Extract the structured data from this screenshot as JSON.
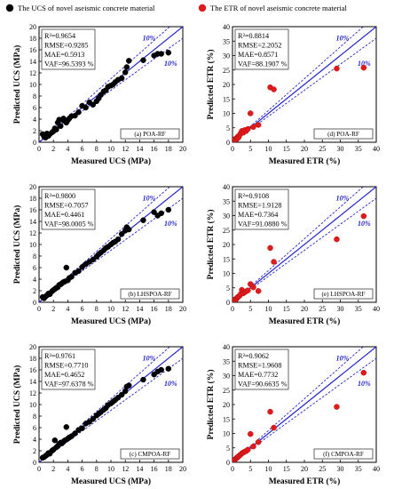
{
  "legend": {
    "left": "The UCS of novel aseismic concrete material",
    "right": "The ETR of novel aseismic concrete material",
    "left_color": "#000000",
    "right_color": "#e21a1a"
  },
  "colors": {
    "fit_line": "#2424c8",
    "band_line": "#2424c8"
  },
  "chart_data": [
    {
      "type": "scatter",
      "id": "a",
      "panel_label": "(a)   POA-RF",
      "xlabel": "",
      "ylabel": "Predicted UCS (MPa)",
      "xlim": [
        0,
        20
      ],
      "ylim": [
        0,
        20
      ],
      "xticks": [
        0,
        2,
        4,
        6,
        8,
        10,
        12,
        14,
        16,
        18,
        20
      ],
      "yticks": [
        0,
        2,
        4,
        6,
        8,
        10,
        12,
        14,
        16,
        18,
        20
      ],
      "stats": [
        "R²=0.9654",
        "RMSE=0.9285",
        "MAE=0.5913",
        "VAF=96.5393 %"
      ],
      "band_labels": [
        "10%",
        "10%"
      ],
      "point_color": "#000000",
      "x": [
        0.5,
        0.7,
        0.9,
        1.1,
        1.3,
        1.5,
        1.8,
        2.0,
        2.2,
        2.4,
        2.6,
        2.8,
        3.0,
        3.2,
        3.4,
        3.6,
        3.8,
        4.0,
        4.2,
        4.5,
        5.0,
        5.5,
        6.0,
        6.5,
        7.0,
        7.5,
        8.0,
        8.3,
        8.6,
        9.0,
        9.3,
        9.6,
        10.0,
        10.3,
        10.6,
        11.0,
        11.5,
        12.0,
        12.2,
        12.5,
        14.5,
        16.0,
        16.5,
        17.0,
        18.0
      ],
      "y": [
        1.4,
        1.0,
        0.8,
        1.5,
        1.1,
        1.4,
        1.7,
        1.9,
        2.4,
        2.2,
        3.4,
        3.9,
        2.8,
        3.9,
        4.1,
        3.7,
        3.4,
        3.8,
        4.1,
        4.5,
        4.6,
        5.2,
        6.3,
        6.0,
        6.9,
        6.5,
        7.1,
        7.6,
        8.2,
        8.8,
        9.0,
        9.6,
        9.8,
        10.0,
        10.4,
        10.8,
        11.1,
        12.1,
        13.0,
        14.1,
        14.2,
        15.0,
        15.3,
        15.3,
        15.5
      ]
    },
    {
      "type": "scatter",
      "id": "d",
      "panel_label": "(d)   POA-RF",
      "xlabel": "",
      "ylabel": "Predicted ETR (%)",
      "xlim": [
        0,
        40
      ],
      "ylim": [
        0,
        40
      ],
      "xticks": [
        0,
        5,
        10,
        15,
        20,
        25,
        30,
        35,
        40
      ],
      "yticks": [
        0,
        5,
        10,
        15,
        20,
        25,
        30,
        35,
        40
      ],
      "stats": [
        "R²=0.8814",
        "RMSE=2.2052",
        "MAE=0.8571",
        "VAF=88.1907 %"
      ],
      "band_labels": [
        "10%",
        "10%"
      ],
      "point_color": "#e21a1a",
      "x": [
        0.3,
        0.5,
        0.7,
        0.9,
        1.1,
        1.3,
        1.5,
        1.7,
        2.0,
        2.3,
        2.6,
        3.0,
        3.4,
        3.8,
        4.3,
        5.0,
        5.8,
        7.2,
        10.5,
        11.5,
        29.0,
        36.5
      ],
      "y": [
        0.4,
        0.7,
        1.1,
        0.8,
        1.4,
        1.2,
        2.0,
        1.7,
        2.5,
        3.1,
        3.9,
        3.3,
        4.2,
        3.9,
        4.6,
        10.0,
        5.3,
        6.0,
        19.0,
        18.3,
        25.5,
        25.8
      ]
    },
    {
      "type": "scatter",
      "id": "b",
      "panel_label": "(b)   LHSPOA-RF",
      "xlabel": "",
      "ylabel": "Predicted UCS (MPa)",
      "xlim": [
        0,
        20
      ],
      "ylim": [
        0,
        20
      ],
      "xticks": [
        0,
        2,
        4,
        6,
        8,
        10,
        12,
        14,
        16,
        18,
        20
      ],
      "yticks": [
        0,
        2,
        4,
        6,
        8,
        10,
        12,
        14,
        16,
        18,
        20
      ],
      "stats": [
        "R²=0.9800",
        "RMSE=0.7057",
        "MAE=0.4461",
        "VAF=98.0005 %"
      ],
      "band_labels": [
        "10%",
        "10%"
      ],
      "point_color": "#000000",
      "x": [
        0.5,
        0.7,
        0.9,
        1.1,
        1.3,
        1.5,
        1.8,
        2.0,
        2.2,
        2.4,
        2.6,
        2.8,
        3.0,
        3.2,
        3.4,
        3.6,
        3.8,
        4.0,
        4.2,
        4.5,
        5.0,
        5.5,
        6.0,
        6.5,
        7.0,
        7.5,
        8.0,
        8.3,
        8.6,
        9.0,
        9.3,
        9.6,
        10.0,
        10.3,
        10.6,
        11.0,
        11.5,
        12.0,
        12.2,
        12.5,
        14.5,
        16.0,
        16.5,
        17.0,
        18.0
      ],
      "y": [
        0.9,
        0.7,
        1.0,
        1.2,
        1.5,
        1.4,
        1.9,
        2.1,
        2.3,
        2.5,
        2.6,
        3.0,
        3.1,
        3.3,
        3.5,
        3.6,
        6.0,
        3.8,
        4.2,
        4.4,
        5.1,
        5.4,
        6.1,
        6.6,
        7.0,
        7.4,
        7.9,
        8.3,
        8.6,
        9.0,
        9.4,
        9.6,
        10.0,
        10.3,
        10.5,
        10.9,
        11.8,
        12.4,
        13.0,
        12.6,
        14.2,
        15.6,
        15.0,
        15.4,
        16.0
      ]
    },
    {
      "type": "scatter",
      "id": "e",
      "panel_label": "(e)   LHSPOA-RF",
      "xlabel": "",
      "ylabel": "Predicted ETR (%)",
      "xlim": [
        0,
        40
      ],
      "ylim": [
        0,
        40
      ],
      "xticks": [
        0,
        5,
        10,
        15,
        20,
        25,
        30,
        35,
        40
      ],
      "yticks": [
        0,
        5,
        10,
        15,
        20,
        25,
        30,
        35,
        40
      ],
      "stats": [
        "R²=0.9108",
        "RMSE=1.9128",
        "MAE=0.7364",
        "VAF=91.0880 %"
      ],
      "band_labels": [
        "10%",
        "10%"
      ],
      "point_color": "#e21a1a",
      "x": [
        0.3,
        0.5,
        0.7,
        0.9,
        1.1,
        1.3,
        1.5,
        1.7,
        2.0,
        2.3,
        2.6,
        3.0,
        3.4,
        3.8,
        4.3,
        5.0,
        5.8,
        7.2,
        10.5,
        11.5,
        29.0,
        36.5
      ],
      "y": [
        0.5,
        0.6,
        1.0,
        0.9,
        1.2,
        1.6,
        1.8,
        2.0,
        2.3,
        2.9,
        4.3,
        3.1,
        3.5,
        3.8,
        4.1,
        6.3,
        5.2,
        3.9,
        18.8,
        14.0,
        21.8,
        29.8
      ]
    },
    {
      "type": "scatter",
      "id": "c",
      "panel_label": "(c)   CMPOA-RF",
      "xlabel": "Measured UCS (MPa)",
      "ylabel": "Predicted UCS (MPa)",
      "xlim": [
        0,
        20
      ],
      "ylim": [
        0,
        20
      ],
      "xticks": [
        0,
        2,
        4,
        6,
        8,
        10,
        12,
        14,
        16,
        18,
        20
      ],
      "yticks": [
        0,
        2,
        4,
        6,
        8,
        10,
        12,
        14,
        16,
        18,
        20
      ],
      "stats": [
        "R²=0.9761",
        "RMSE=0.7710",
        "MAE=0.4652",
        "VAF=97.6378 %"
      ],
      "band_labels": [
        "10%",
        "10%"
      ],
      "point_color": "#000000",
      "x": [
        0.5,
        0.7,
        0.9,
        1.1,
        1.3,
        1.5,
        1.8,
        2.0,
        2.2,
        2.4,
        2.6,
        2.8,
        3.0,
        3.2,
        3.4,
        3.6,
        3.8,
        4.0,
        4.2,
        4.5,
        5.0,
        5.5,
        6.0,
        6.5,
        7.0,
        7.5,
        8.0,
        8.3,
        8.6,
        9.0,
        9.3,
        9.6,
        10.0,
        10.3,
        10.6,
        11.0,
        11.5,
        12.0,
        12.2,
        12.5,
        14.5,
        16.0,
        16.5,
        17.0,
        18.0
      ],
      "y": [
        0.8,
        0.9,
        1.1,
        1.3,
        1.6,
        1.5,
        2.0,
        2.2,
        3.8,
        2.6,
        2.8,
        3.2,
        3.4,
        3.3,
        3.6,
        3.8,
        6.1,
        4.1,
        4.3,
        4.5,
        5.0,
        5.6,
        5.9,
        6.7,
        7.0,
        7.5,
        8.1,
        8.4,
        8.7,
        9.1,
        9.4,
        9.9,
        10.2,
        10.5,
        10.8,
        11.2,
        11.7,
        12.3,
        13.1,
        13.3,
        14.3,
        15.2,
        15.7,
        16.0,
        16.2
      ]
    },
    {
      "type": "scatter",
      "id": "f",
      "panel_label": "(f)   CMPOA-RF",
      "xlabel": "Measured ETR (%)",
      "ylabel": "Predicted ETR (%)",
      "xlim": [
        0,
        40
      ],
      "ylim": [
        0,
        40
      ],
      "xticks": [
        0,
        5,
        10,
        15,
        20,
        25,
        30,
        35,
        40
      ],
      "yticks": [
        0,
        5,
        10,
        15,
        20,
        25,
        30,
        35,
        40
      ],
      "stats": [
        "R²=0.9062",
        "RMSE=1.9608",
        "MAE=0.7732",
        "VAF=90.6635 %"
      ],
      "band_labels": [
        "10%",
        "10%"
      ],
      "point_color": "#e21a1a",
      "x": [
        0.3,
        0.5,
        0.7,
        0.9,
        1.1,
        1.3,
        1.5,
        1.7,
        2.0,
        2.3,
        2.6,
        3.0,
        3.4,
        3.8,
        4.3,
        5.0,
        5.8,
        7.2,
        10.5,
        11.5,
        29.0,
        36.5
      ],
      "y": [
        0.5,
        0.8,
        1.0,
        1.2,
        1.5,
        1.6,
        1.9,
        2.1,
        2.4,
        2.7,
        3.1,
        3.4,
        3.7,
        3.9,
        4.4,
        9.8,
        5.5,
        7.0,
        17.5,
        12.0,
        19.2,
        31.0
      ]
    }
  ]
}
